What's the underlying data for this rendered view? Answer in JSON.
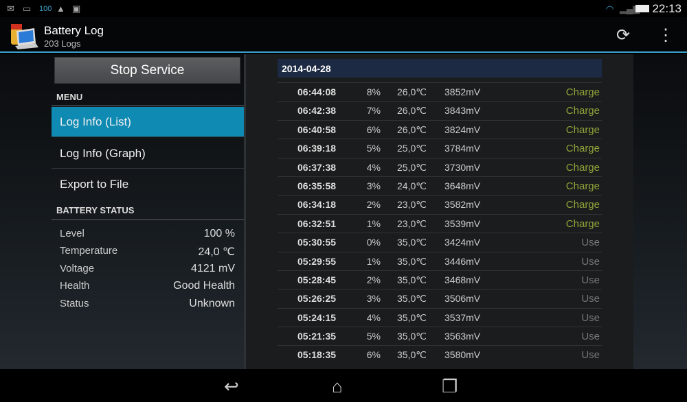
{
  "status_bar": {
    "battery_text": "100",
    "time": "22:13"
  },
  "app": {
    "title": "Battery Log",
    "subtitle": "203 Logs"
  },
  "sidebar": {
    "stop_service": "Stop Service",
    "menu_header": "MENU",
    "menu_items": [
      {
        "label": "Log Info (List)",
        "selected": true
      },
      {
        "label": "Log Info (Graph)",
        "selected": false
      },
      {
        "label": "Export to File",
        "selected": false
      }
    ],
    "status_header": "BATTERY STATUS",
    "status": [
      {
        "label": "Level",
        "value": "100 %"
      },
      {
        "label": "Temperature",
        "value": "24,0 ℃"
      },
      {
        "label": "Voltage",
        "value": "4121 mV"
      },
      {
        "label": "Health",
        "value": "Good Health"
      },
      {
        "label": "Status",
        "value": "Unknown"
      }
    ]
  },
  "log": {
    "date": "2014-04-28",
    "colors": {
      "charge": "#8fa63a",
      "use": "#777777"
    },
    "rows": [
      {
        "time": "06:44:08",
        "level": "8%",
        "temp": "26,0℃",
        "voltage": "3852mV",
        "state": "Charge"
      },
      {
        "time": "06:42:38",
        "level": "7%",
        "temp": "26,0℃",
        "voltage": "3843mV",
        "state": "Charge"
      },
      {
        "time": "06:40:58",
        "level": "6%",
        "temp": "26,0℃",
        "voltage": "3824mV",
        "state": "Charge"
      },
      {
        "time": "06:39:18",
        "level": "5%",
        "temp": "25,0℃",
        "voltage": "3784mV",
        "state": "Charge"
      },
      {
        "time": "06:37:38",
        "level": "4%",
        "temp": "25,0℃",
        "voltage": "3730mV",
        "state": "Charge"
      },
      {
        "time": "06:35:58",
        "level": "3%",
        "temp": "24,0℃",
        "voltage": "3648mV",
        "state": "Charge"
      },
      {
        "time": "06:34:18",
        "level": "2%",
        "temp": "23,0℃",
        "voltage": "3582mV",
        "state": "Charge"
      },
      {
        "time": "06:32:51",
        "level": "1%",
        "temp": "23,0℃",
        "voltage": "3539mV",
        "state": "Charge"
      },
      {
        "time": "05:30:55",
        "level": "0%",
        "temp": "35,0℃",
        "voltage": "3424mV",
        "state": "Use"
      },
      {
        "time": "05:29:55",
        "level": "1%",
        "temp": "35,0℃",
        "voltage": "3446mV",
        "state": "Use"
      },
      {
        "time": "05:28:45",
        "level": "2%",
        "temp": "35,0℃",
        "voltage": "3468mV",
        "state": "Use"
      },
      {
        "time": "05:26:25",
        "level": "3%",
        "temp": "35,0℃",
        "voltage": "3506mV",
        "state": "Use"
      },
      {
        "time": "05:24:15",
        "level": "4%",
        "temp": "35,0℃",
        "voltage": "3537mV",
        "state": "Use"
      },
      {
        "time": "05:21:35",
        "level": "5%",
        "temp": "35,0℃",
        "voltage": "3563mV",
        "state": "Use"
      },
      {
        "time": "05:18:35",
        "level": "6%",
        "temp": "35,0℃",
        "voltage": "3580mV",
        "state": "Use"
      }
    ]
  }
}
